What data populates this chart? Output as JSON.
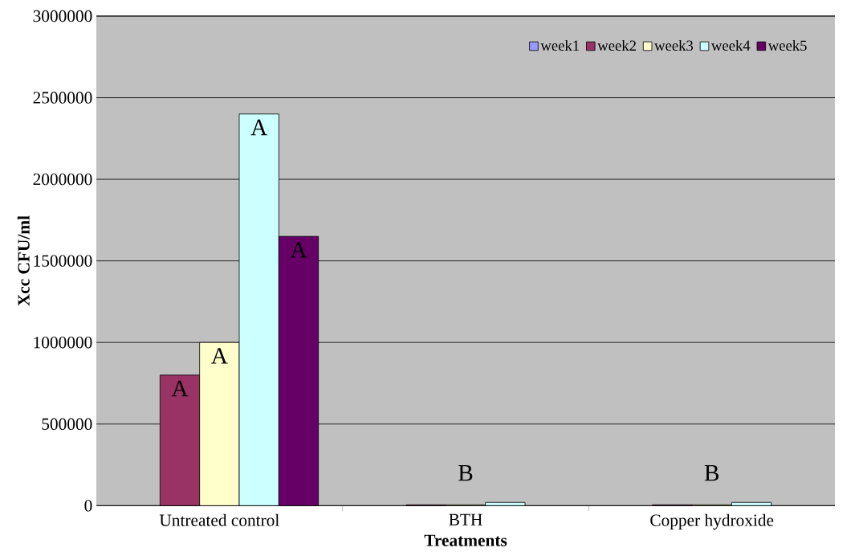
{
  "chart_data": {
    "type": "bar",
    "xlabel": "Treatments",
    "ylabel": "Xcc CFU/ml",
    "categories": [
      "Untreated control",
      "BTH",
      "Copper hydroxide"
    ],
    "series": [
      {
        "name": "week1",
        "color": "#9999ff",
        "values": [
          null,
          null,
          null
        ]
      },
      {
        "name": "week2",
        "color": "#993366",
        "values": [
          800000,
          5000,
          5000
        ]
      },
      {
        "name": "week3",
        "color": "#ffffcc",
        "values": [
          1000000,
          5000,
          5000
        ]
      },
      {
        "name": "week4",
        "color": "#ccffff",
        "values": [
          2400000,
          20000,
          20000
        ]
      },
      {
        "name": "week5",
        "color": "#660066",
        "values": [
          1650000,
          null,
          null
        ]
      }
    ],
    "ylim": [
      0,
      3000000
    ],
    "yticks": [
      0,
      500000,
      1000000,
      1500000,
      2000000,
      2500000,
      3000000
    ],
    "grid": "y",
    "legend": "top right",
    "annotations": [
      "A",
      "A",
      "A",
      "A",
      {
        "text": "B",
        "x": "BTH",
        "y": 20000
      },
      {
        "text": "B",
        "x": "Copper hydroxide",
        "y": 20000
      }
    ]
  }
}
